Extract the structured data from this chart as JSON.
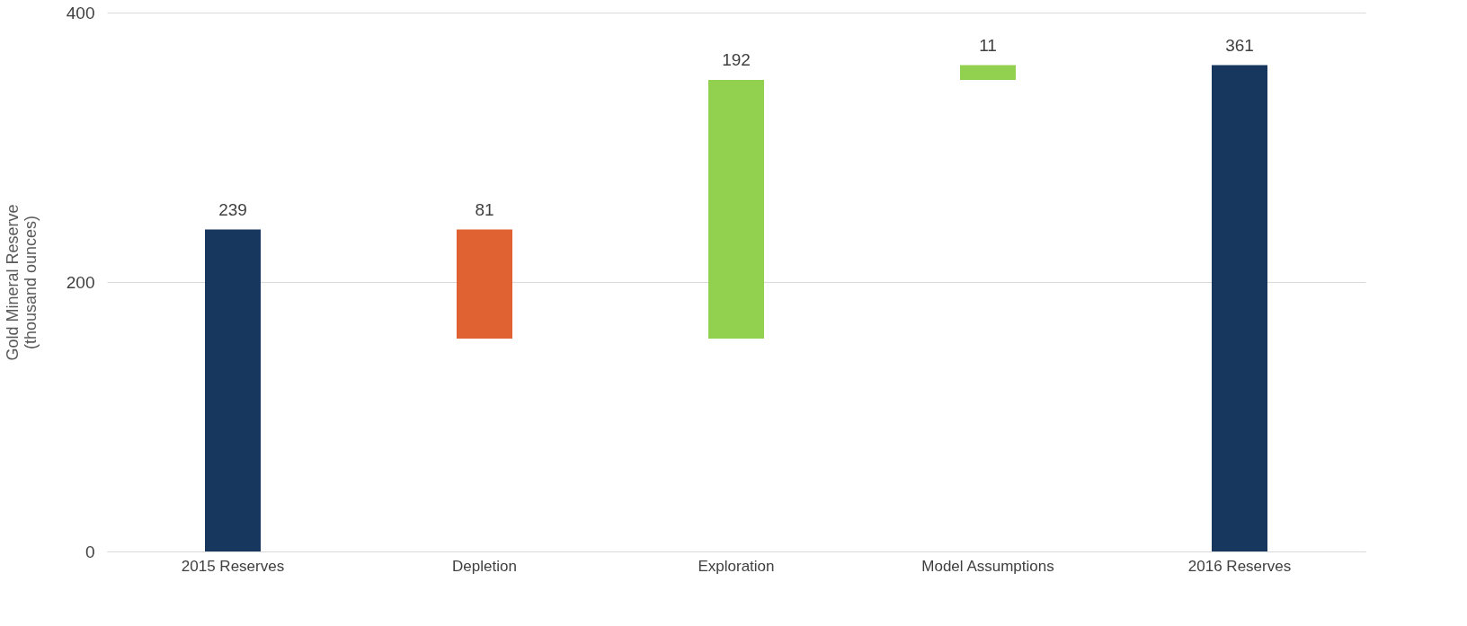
{
  "chart_data": {
    "type": "bar",
    "ylabel": "Gold Mineral Reserve\n(thousand ounces)",
    "categories": [
      "2015 Reserves",
      "Depletion",
      "Exploration",
      "Model Assumptions",
      "2016 Reserves"
    ],
    "values": [
      239,
      81,
      192,
      11,
      361
    ],
    "base": [
      0,
      158,
      158,
      350,
      0
    ],
    "colors": [
      "#17375e",
      "#e06232",
      "#92d050",
      "#92d050",
      "#17375e"
    ],
    "ylim": [
      0,
      400
    ],
    "yticks": [
      0,
      200,
      400
    ],
    "grid": "y",
    "data_labels": true
  }
}
